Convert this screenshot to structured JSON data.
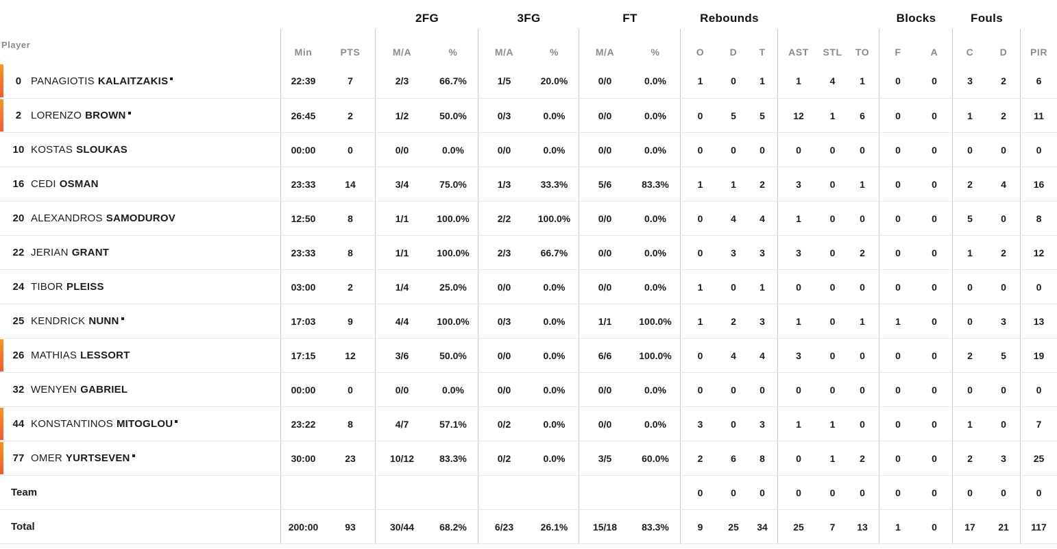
{
  "colors": {
    "starter_marker_top": "#f8941d",
    "starter_marker_bottom": "#f1583c",
    "column_line": "#c9c9c9",
    "row_line": "#e9e9e9",
    "muted_header": "#8b8b8b"
  },
  "table": {
    "player_header": "Player",
    "groups": [
      {
        "label": "2FG"
      },
      {
        "label": "3FG"
      },
      {
        "label": "FT"
      },
      {
        "label": "Rebounds"
      },
      {
        "label": "Blocks"
      },
      {
        "label": "Fouls"
      }
    ],
    "columns": [
      "Min",
      "PTS",
      "M/A",
      "%",
      "M/A",
      "%",
      "M/A",
      "%",
      "O",
      "D",
      "T",
      "AST",
      "STL",
      "TO",
      "F",
      "A",
      "C",
      "D",
      "PIR"
    ],
    "rows": [
      {
        "number": "0",
        "first": "PANAGIOTIS",
        "last": "KALAITZAKIS",
        "dot": true,
        "starter": true,
        "stats": [
          "22:39",
          "7",
          "2/3",
          "66.7%",
          "1/5",
          "20.0%",
          "0/0",
          "0.0%",
          "1",
          "0",
          "1",
          "1",
          "4",
          "1",
          "0",
          "0",
          "3",
          "2",
          "6"
        ]
      },
      {
        "number": "2",
        "first": "LORENZO",
        "last": "BROWN",
        "dot": true,
        "starter": true,
        "stats": [
          "26:45",
          "2",
          "1/2",
          "50.0%",
          "0/3",
          "0.0%",
          "0/0",
          "0.0%",
          "0",
          "5",
          "5",
          "12",
          "1",
          "6",
          "0",
          "0",
          "1",
          "2",
          "11"
        ]
      },
      {
        "number": "10",
        "first": "KOSTAS",
        "last": "SLOUKAS",
        "dot": false,
        "starter": false,
        "stats": [
          "00:00",
          "0",
          "0/0",
          "0.0%",
          "0/0",
          "0.0%",
          "0/0",
          "0.0%",
          "0",
          "0",
          "0",
          "0",
          "0",
          "0",
          "0",
          "0",
          "0",
          "0",
          "0"
        ]
      },
      {
        "number": "16",
        "first": "CEDI",
        "last": "OSMAN",
        "dot": false,
        "starter": false,
        "stats": [
          "23:33",
          "14",
          "3/4",
          "75.0%",
          "1/3",
          "33.3%",
          "5/6",
          "83.3%",
          "1",
          "1",
          "2",
          "3",
          "0",
          "1",
          "0",
          "0",
          "2",
          "4",
          "16"
        ]
      },
      {
        "number": "20",
        "first": "ALEXANDROS",
        "last": "SAMODUROV",
        "dot": false,
        "starter": false,
        "stats": [
          "12:50",
          "8",
          "1/1",
          "100.0%",
          "2/2",
          "100.0%",
          "0/0",
          "0.0%",
          "0",
          "4",
          "4",
          "1",
          "0",
          "0",
          "0",
          "0",
          "5",
          "0",
          "8"
        ]
      },
      {
        "number": "22",
        "first": "JERIAN",
        "last": "GRANT",
        "dot": false,
        "starter": false,
        "stats": [
          "23:33",
          "8",
          "1/1",
          "100.0%",
          "2/3",
          "66.7%",
          "0/0",
          "0.0%",
          "0",
          "3",
          "3",
          "3",
          "0",
          "2",
          "0",
          "0",
          "1",
          "2",
          "12"
        ]
      },
      {
        "number": "24",
        "first": "TIBOR",
        "last": "PLEISS",
        "dot": false,
        "starter": false,
        "stats": [
          "03:00",
          "2",
          "1/4",
          "25.0%",
          "0/0",
          "0.0%",
          "0/0",
          "0.0%",
          "1",
          "0",
          "1",
          "0",
          "0",
          "0",
          "0",
          "0",
          "0",
          "0",
          "0"
        ]
      },
      {
        "number": "25",
        "first": "KENDRICK",
        "last": "NUNN",
        "dot": true,
        "starter": false,
        "stats": [
          "17:03",
          "9",
          "4/4",
          "100.0%",
          "0/3",
          "0.0%",
          "1/1",
          "100.0%",
          "1",
          "2",
          "3",
          "1",
          "0",
          "1",
          "1",
          "0",
          "0",
          "3",
          "13"
        ]
      },
      {
        "number": "26",
        "first": "MATHIAS",
        "last": "LESSORT",
        "dot": false,
        "starter": true,
        "stats": [
          "17:15",
          "12",
          "3/6",
          "50.0%",
          "0/0",
          "0.0%",
          "6/6",
          "100.0%",
          "0",
          "4",
          "4",
          "3",
          "0",
          "0",
          "0",
          "0",
          "2",
          "5",
          "19"
        ]
      },
      {
        "number": "32",
        "first": "WENYEN",
        "last": "GABRIEL",
        "dot": false,
        "starter": false,
        "stats": [
          "00:00",
          "0",
          "0/0",
          "0.0%",
          "0/0",
          "0.0%",
          "0/0",
          "0.0%",
          "0",
          "0",
          "0",
          "0",
          "0",
          "0",
          "0",
          "0",
          "0",
          "0",
          "0"
        ]
      },
      {
        "number": "44",
        "first": "KONSTANTINOS",
        "last": "MITOGLOU",
        "dot": true,
        "starter": true,
        "stats": [
          "23:22",
          "8",
          "4/7",
          "57.1%",
          "0/2",
          "0.0%",
          "0/0",
          "0.0%",
          "3",
          "0",
          "3",
          "1",
          "1",
          "0",
          "0",
          "0",
          "1",
          "0",
          "7"
        ]
      },
      {
        "number": "77",
        "first": "OMER",
        "last": "YURTSEVEN",
        "dot": true,
        "starter": true,
        "stats": [
          "30:00",
          "23",
          "10/12",
          "83.3%",
          "0/2",
          "0.0%",
          "3/5",
          "60.0%",
          "2",
          "6",
          "8",
          "0",
          "1",
          "2",
          "0",
          "0",
          "2",
          "3",
          "25"
        ]
      },
      {
        "label": "Team",
        "stats": [
          "",
          "",
          "",
          "",
          "",
          "",
          "",
          "",
          "0",
          "0",
          "0",
          "0",
          "0",
          "0",
          "0",
          "0",
          "0",
          "0",
          "0"
        ]
      },
      {
        "label": "Total",
        "stats": [
          "200:00",
          "93",
          "30/44",
          "68.2%",
          "6/23",
          "26.1%",
          "15/18",
          "83.3%",
          "9",
          "25",
          "34",
          "25",
          "7",
          "13",
          "1",
          "0",
          "17",
          "21",
          "117"
        ]
      }
    ]
  }
}
